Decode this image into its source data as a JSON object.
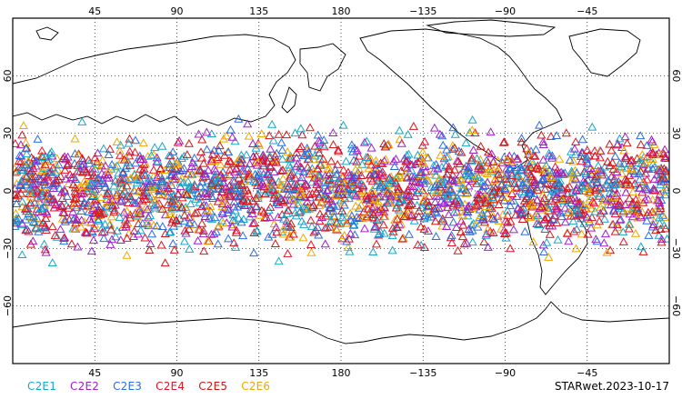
{
  "map": {
    "lon_ticks": [
      "45",
      "90",
      "135",
      "180",
      "−135",
      "−90",
      "−45"
    ],
    "lat_ticks": [
      "60",
      "30",
      "0",
      "−30",
      "−60"
    ],
    "lat_tick_values": [
      60,
      30,
      0,
      -30,
      -60
    ],
    "lon_tick_values": [
      45,
      90,
      135,
      180,
      225,
      270,
      315
    ],
    "lon_range": [
      0,
      360
    ],
    "lat_range": [
      -90,
      90
    ],
    "grid": "dotted",
    "marker": "open-triangle",
    "observation_lat_band": [
      -40,
      40
    ]
  },
  "legend": {
    "items": [
      {
        "label": "C2E1",
        "color": "#1aa6c8"
      },
      {
        "label": "C2E2",
        "color": "#a020c8"
      },
      {
        "label": "C2E3",
        "color": "#2a6ee0"
      },
      {
        "label": "C2E4",
        "color": "#e0142a"
      },
      {
        "label": "C2E5",
        "color": "#d01818"
      },
      {
        "label": "C2E6",
        "color": "#f0a800"
      }
    ]
  },
  "product_label": "STARwet.2023-10-17"
}
